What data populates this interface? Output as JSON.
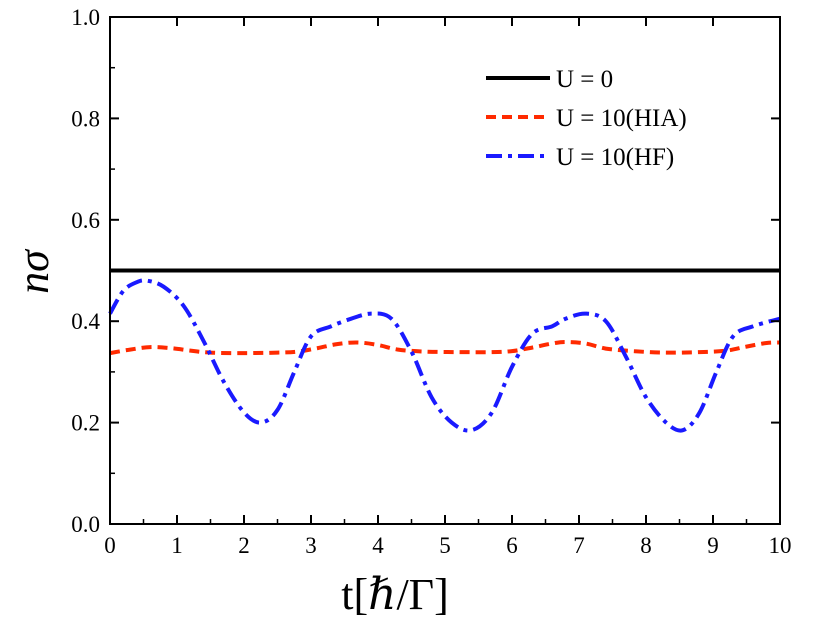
{
  "chart_data": {
    "type": "line",
    "xlabel": "t[ℏ/Γ]",
    "ylabel": "nσ",
    "xlim": [
      0,
      10
    ],
    "ylim": [
      0.0,
      1.0
    ],
    "x_ticks": [
      "0",
      "1",
      "2",
      "3",
      "4",
      "5",
      "6",
      "7",
      "8",
      "9",
      "10"
    ],
    "y_ticks": [
      "0.0",
      "0.2",
      "0.4",
      "0.6",
      "0.8",
      "1.0"
    ],
    "legend_position": "top-right",
    "grid": false,
    "series": [
      {
        "name": "U = 0",
        "color": "#000000",
        "dash": "solid",
        "x": [
          0,
          10
        ],
        "y": [
          0.5,
          0.5
        ]
      },
      {
        "name": "U = 10(HIA)",
        "color": "#ff2a00",
        "dash": "dash",
        "x": [
          0,
          0.3,
          0.6,
          0.9,
          1.2,
          1.5,
          2.0,
          2.5,
          2.8,
          3.1,
          3.4,
          3.7,
          4.0,
          4.3,
          4.7,
          5.2,
          5.7,
          6.0,
          6.3,
          6.6,
          6.8,
          7.1,
          7.4,
          7.8,
          8.3,
          8.8,
          9.2,
          9.5,
          9.8,
          10
        ],
        "y": [
          0.337,
          0.344,
          0.349,
          0.347,
          0.342,
          0.338,
          0.337,
          0.338,
          0.34,
          0.347,
          0.355,
          0.358,
          0.353,
          0.344,
          0.34,
          0.339,
          0.339,
          0.341,
          0.348,
          0.356,
          0.359,
          0.356,
          0.346,
          0.341,
          0.338,
          0.339,
          0.342,
          0.35,
          0.357,
          0.358
        ]
      },
      {
        "name": "U = 10(HF)",
        "color": "#1a1aff",
        "dash": "dashdot",
        "x": [
          0,
          0.2,
          0.4,
          0.55,
          0.8,
          1.1,
          1.4,
          1.7,
          2.0,
          2.25,
          2.5,
          2.75,
          3.0,
          3.3,
          3.6,
          3.9,
          4.2,
          4.5,
          4.8,
          5.1,
          5.4,
          5.7,
          6.0,
          6.3,
          6.6,
          6.8,
          7.1,
          7.4,
          7.7,
          8.0,
          8.3,
          8.55,
          8.8,
          9.05,
          9.3,
          9.6,
          10
        ],
        "y": [
          0.415,
          0.46,
          0.477,
          0.48,
          0.468,
          0.43,
          0.36,
          0.28,
          0.22,
          0.2,
          0.225,
          0.3,
          0.37,
          0.39,
          0.405,
          0.415,
          0.405,
          0.34,
          0.25,
          0.2,
          0.185,
          0.22,
          0.31,
          0.375,
          0.39,
          0.405,
          0.415,
          0.4,
          0.33,
          0.25,
          0.2,
          0.185,
          0.22,
          0.3,
          0.37,
          0.39,
          0.405
        ]
      }
    ]
  }
}
